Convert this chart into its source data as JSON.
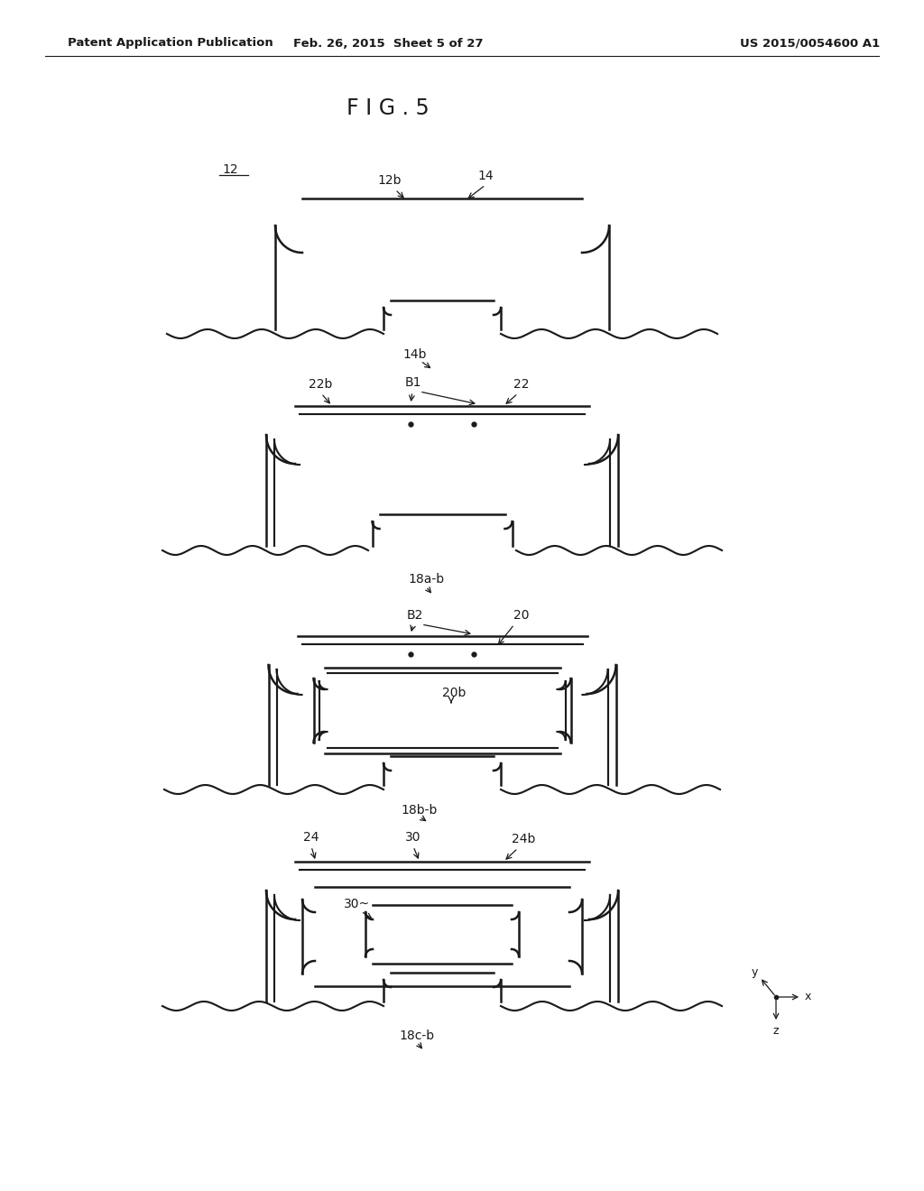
{
  "bg_color": "#ffffff",
  "line_color": "#1a1a1a",
  "header_left": "Patent Application Publication",
  "header_mid": "Feb. 26, 2015  Sheet 5 of 27",
  "header_right": "US 2015/0054600 A1",
  "fig_title": "F I G . 5"
}
